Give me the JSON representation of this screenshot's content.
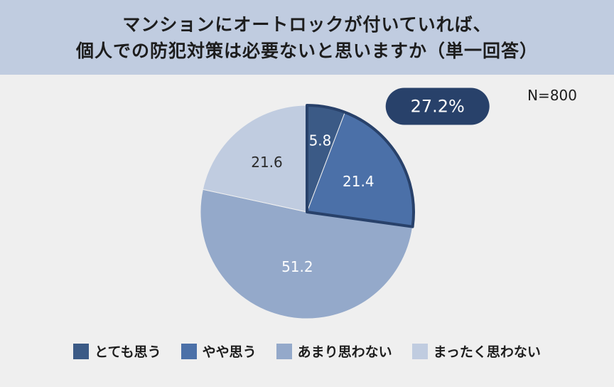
{
  "header": {
    "title_line1": "マンションにオートロックが付いていれば、",
    "title_line2": "個人での防犯対策は必要ないと思いますか（単一回答）"
  },
  "n_label": "N=800",
  "chart_data": {
    "type": "pie",
    "title": "マンションにオートロックが付いていれば、個人での防犯対策は必要ないと思いますか（単一回答）",
    "categories": [
      "とても思う",
      "やや思う",
      "あまり思わない",
      "まったく思わない"
    ],
    "values": [
      5.8,
      21.4,
      51.2,
      21.6
    ],
    "value_labels": [
      "5.8",
      "21.4",
      "51.2",
      "21.6"
    ],
    "colors": [
      "#3b5a86",
      "#4b70a8",
      "#94a9ca",
      "#c0cce0"
    ],
    "label_colors": [
      "#ffffff",
      "#ffffff",
      "#ffffff",
      "#2a2a2a"
    ],
    "highlight": {
      "categories": [
        "とても思う",
        "やや思う"
      ],
      "total_label": "27.2%",
      "color": "#28416a"
    },
    "legend_position": "bottom"
  }
}
